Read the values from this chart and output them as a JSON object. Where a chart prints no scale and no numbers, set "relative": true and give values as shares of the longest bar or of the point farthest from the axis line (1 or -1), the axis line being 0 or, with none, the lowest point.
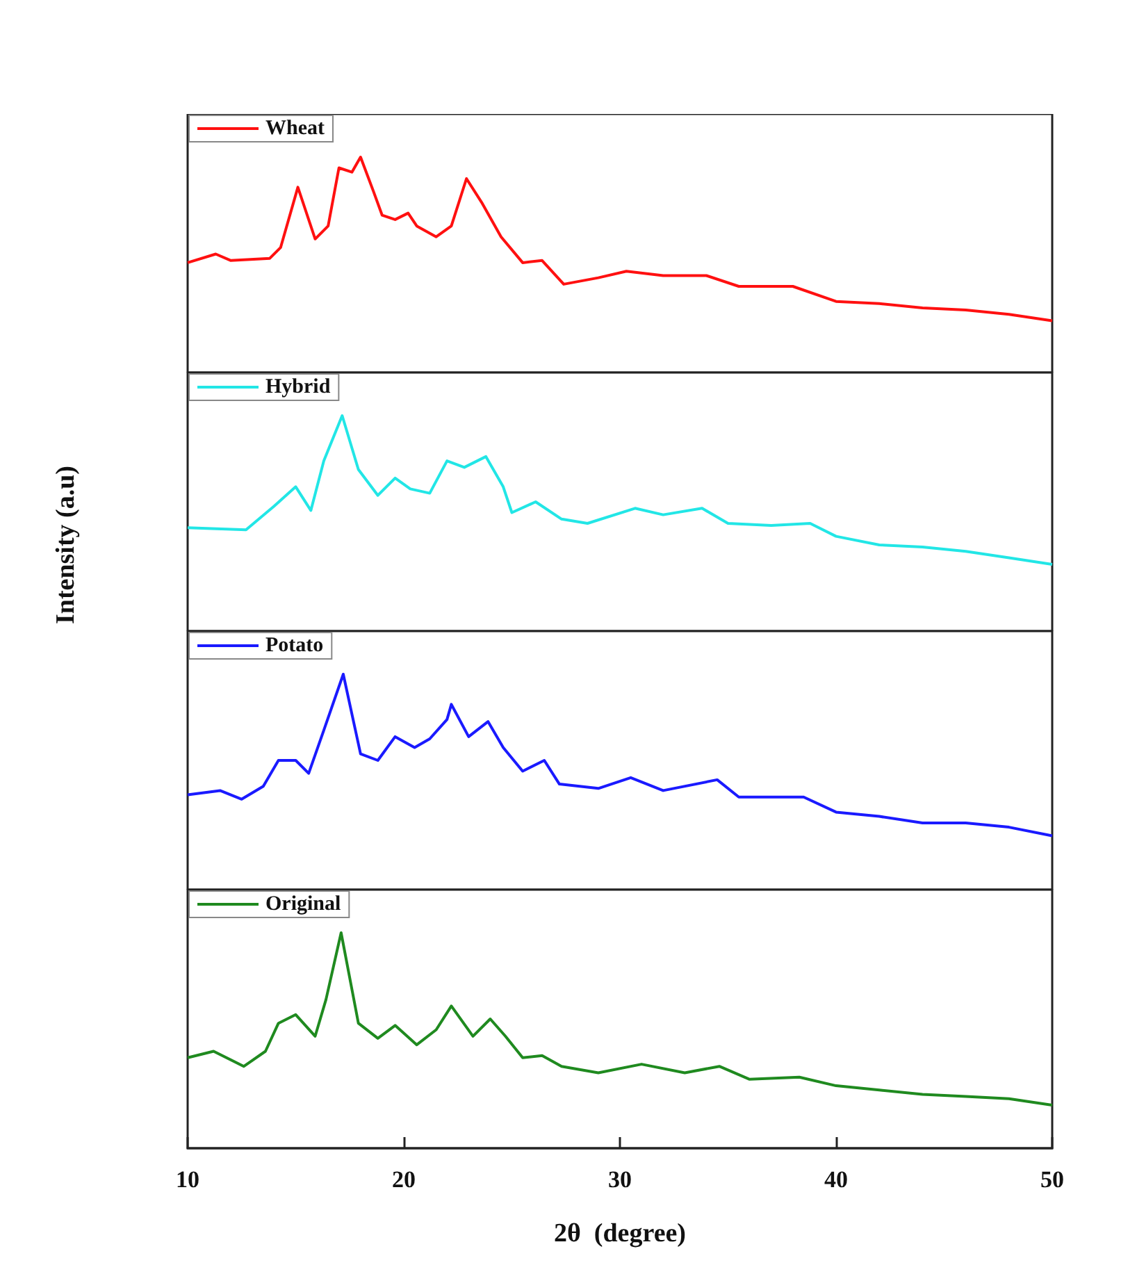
{
  "chart_data": [
    {
      "type": "line",
      "relative": true,
      "legend": "top left",
      "tick_labels": false,
      "xlim": [
        10,
        50
      ],
      "x": [
        10,
        11.3,
        12,
        13.8,
        14.3,
        15.1,
        15.9,
        16.5,
        17,
        17.6,
        18,
        18.6,
        19,
        19.6,
        20.2,
        20.6,
        21.5,
        22.2,
        22.9,
        23.6,
        24.5,
        25.5,
        26.4,
        27.4,
        29,
        30.3,
        32,
        34,
        35.5,
        38,
        40,
        42,
        44,
        46,
        48,
        50
      ],
      "series": [
        {
          "name": "Wheat",
          "color": "#ff1010",
          "values": [
            0.51,
            0.55,
            0.52,
            0.53,
            0.58,
            0.86,
            0.62,
            0.68,
            0.95,
            0.93,
            1,
            0.84,
            0.73,
            0.71,
            0.74,
            0.68,
            0.63,
            0.68,
            0.9,
            0.79,
            0.63,
            0.51,
            0.52,
            0.41,
            0.44,
            0.47,
            0.45,
            0.45,
            0.4,
            0.4,
            0.33,
            0.32,
            0.3,
            0.29,
            0.27,
            0.24
          ]
        }
      ]
    },
    {
      "type": "line",
      "relative": true,
      "ylabel": "Intensity (a.u)",
      "legend": "top left",
      "tick_labels": false,
      "xlim": [
        10,
        50
      ],
      "x": [
        10,
        12.7,
        14,
        15,
        15.7,
        16.3,
        17.15,
        17.9,
        18.8,
        19.6,
        20.3,
        21.2,
        22,
        22.8,
        23.8,
        24.6,
        25,
        26.1,
        27.3,
        28.5,
        30.7,
        32,
        33.8,
        35,
        37,
        38.8,
        40,
        42,
        44,
        46,
        48,
        50
      ],
      "series": [
        {
          "name": "Hybrid",
          "color": "#22e6e6",
          "values": [
            0.48,
            0.47,
            0.58,
            0.67,
            0.56,
            0.79,
            1,
            0.75,
            0.63,
            0.71,
            0.66,
            0.64,
            0.79,
            0.76,
            0.81,
            0.67,
            0.55,
            0.6,
            0.52,
            0.5,
            0.57,
            0.54,
            0.57,
            0.5,
            0.49,
            0.5,
            0.44,
            0.4,
            0.39,
            0.37,
            0.34,
            0.31
          ]
        }
      ]
    },
    {
      "type": "line",
      "relative": true,
      "legend": "top left",
      "tick_labels": false,
      "xlim": [
        10,
        50
      ],
      "x": [
        10,
        11.5,
        12.5,
        13.5,
        14.2,
        15,
        15.6,
        16.3,
        17.2,
        18,
        18.8,
        19.6,
        20.5,
        21.2,
        22,
        22.2,
        23,
        23.9,
        24.6,
        25.5,
        26.5,
        27.2,
        29,
        30.5,
        32,
        34.5,
        35.5,
        38.5,
        40,
        42,
        44,
        46,
        48,
        50
      ],
      "series": [
        {
          "name": "Potato",
          "color": "#1a1aff",
          "values": [
            0.44,
            0.46,
            0.42,
            0.48,
            0.6,
            0.6,
            0.54,
            0.74,
            1,
            0.63,
            0.6,
            0.71,
            0.66,
            0.7,
            0.79,
            0.86,
            0.71,
            0.78,
            0.66,
            0.55,
            0.6,
            0.49,
            0.47,
            0.52,
            0.46,
            0.51,
            0.43,
            0.43,
            0.36,
            0.34,
            0.31,
            0.31,
            0.29,
            0.25
          ]
        }
      ]
    },
    {
      "type": "line",
      "relative": true,
      "legend": "top left",
      "tick_labels": "x",
      "xlabel": "2θ  (degree)",
      "xlim": [
        10,
        50
      ],
      "xticks": [
        10,
        20,
        30,
        40,
        50
      ],
      "x": [
        10,
        11.2,
        12.6,
        13.6,
        14.2,
        15,
        15.9,
        16.4,
        17.1,
        17.9,
        18.8,
        19.6,
        20.6,
        21.5,
        22.2,
        23.2,
        24,
        24.7,
        25.5,
        26.4,
        27.3,
        29,
        31,
        33,
        34.6,
        36,
        38.3,
        40,
        42,
        44,
        46,
        48,
        50
      ],
      "series": [
        {
          "name": "Original",
          "color": "#1f8a1f",
          "values": [
            0.42,
            0.45,
            0.38,
            0.45,
            0.58,
            0.62,
            0.52,
            0.69,
            1,
            0.58,
            0.51,
            0.57,
            0.48,
            0.55,
            0.66,
            0.52,
            0.6,
            0.52,
            0.42,
            0.43,
            0.38,
            0.35,
            0.39,
            0.35,
            0.38,
            0.32,
            0.33,
            0.29,
            0.27,
            0.25,
            0.24,
            0.23,
            0.2
          ]
        }
      ]
    }
  ]
}
